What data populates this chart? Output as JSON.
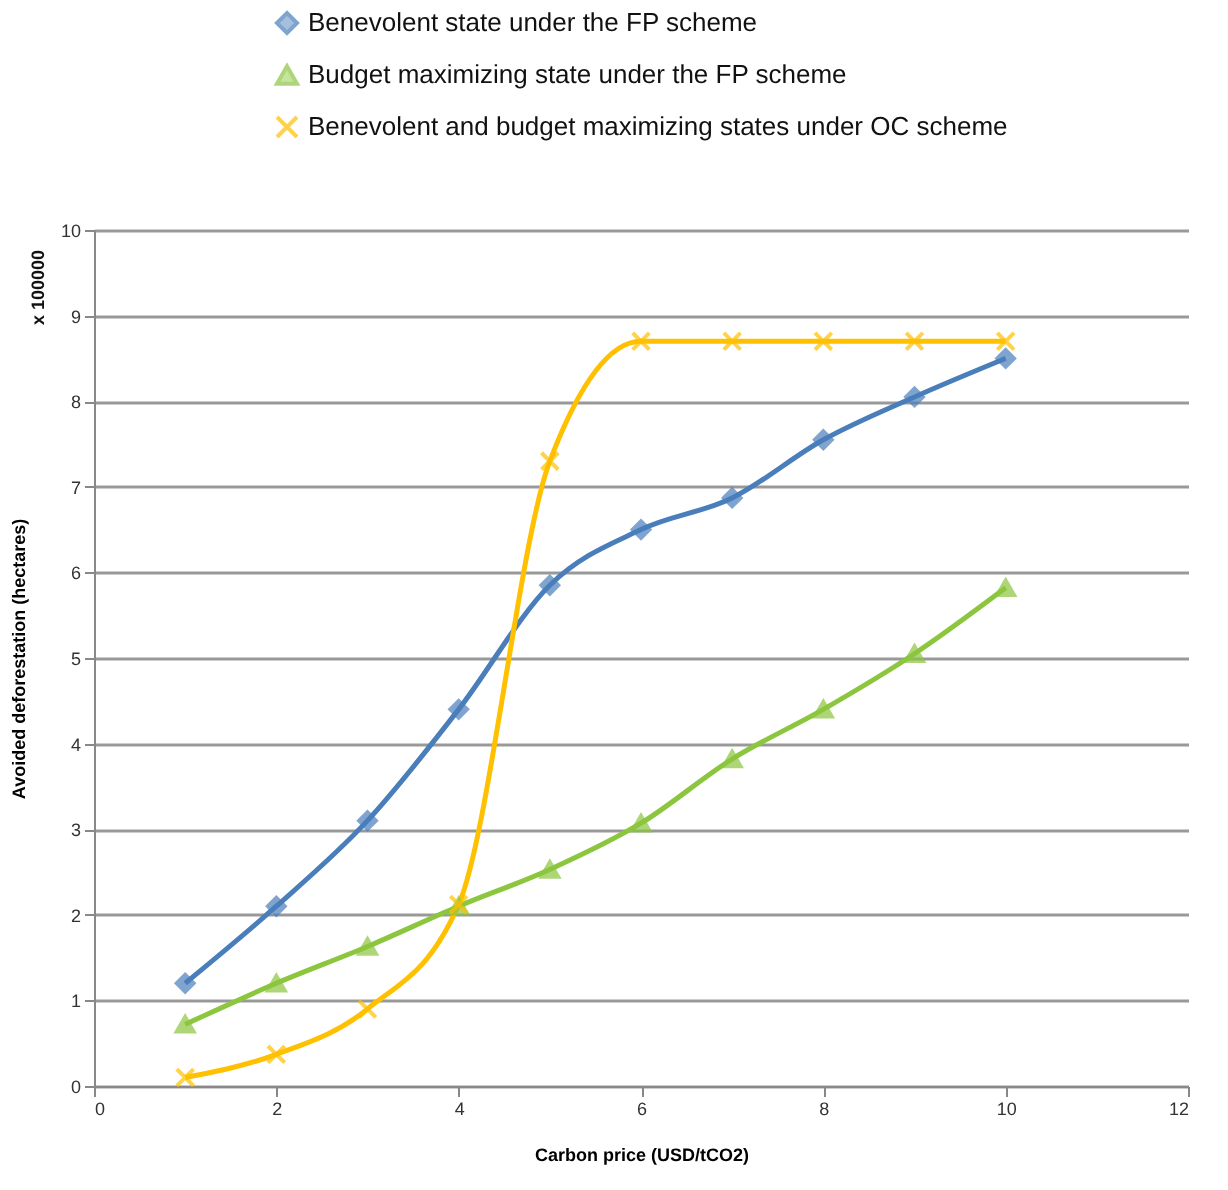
{
  "chart_data": {
    "type": "line",
    "xlabel": "Carbon price (USD/tCO2)",
    "ylabel": "Avoided deforestation  (hectares)",
    "annotations": [
      "x 100000"
    ],
    "x": [
      1,
      2,
      3,
      4,
      5,
      6,
      7,
      8,
      9,
      10
    ],
    "xlim": [
      0,
      12
    ],
    "xticks": [
      0,
      2,
      4,
      6,
      8,
      10,
      12
    ],
    "ylim": [
      0,
      10
    ],
    "yticks": [
      0,
      1,
      2,
      3,
      4,
      5,
      6,
      7,
      8,
      9,
      10
    ],
    "grid": "y",
    "legend": "top",
    "series": [
      {
        "name": "Benevolent state under the FP scheme",
        "color": "#4a7ebb",
        "marker": "diamond",
        "values": [
          1.2,
          2.1,
          3.1,
          4.4,
          5.85,
          6.5,
          6.87,
          7.55,
          8.05,
          8.5
        ]
      },
      {
        "name": "Budget maximizing state under the FP scheme",
        "color": "#8cc63f",
        "marker": "triangle",
        "values": [
          0.72,
          1.2,
          1.63,
          2.1,
          2.53,
          3.07,
          3.82,
          4.4,
          5.05,
          5.82
        ]
      },
      {
        "name": "Benevolent and budget maximizing states under OC scheme",
        "color": "#ffc000",
        "marker": "cross",
        "values": [
          0.1,
          0.37,
          0.9,
          2.12,
          7.3,
          8.7,
          8.7,
          8.7,
          8.7,
          8.7
        ]
      }
    ]
  }
}
